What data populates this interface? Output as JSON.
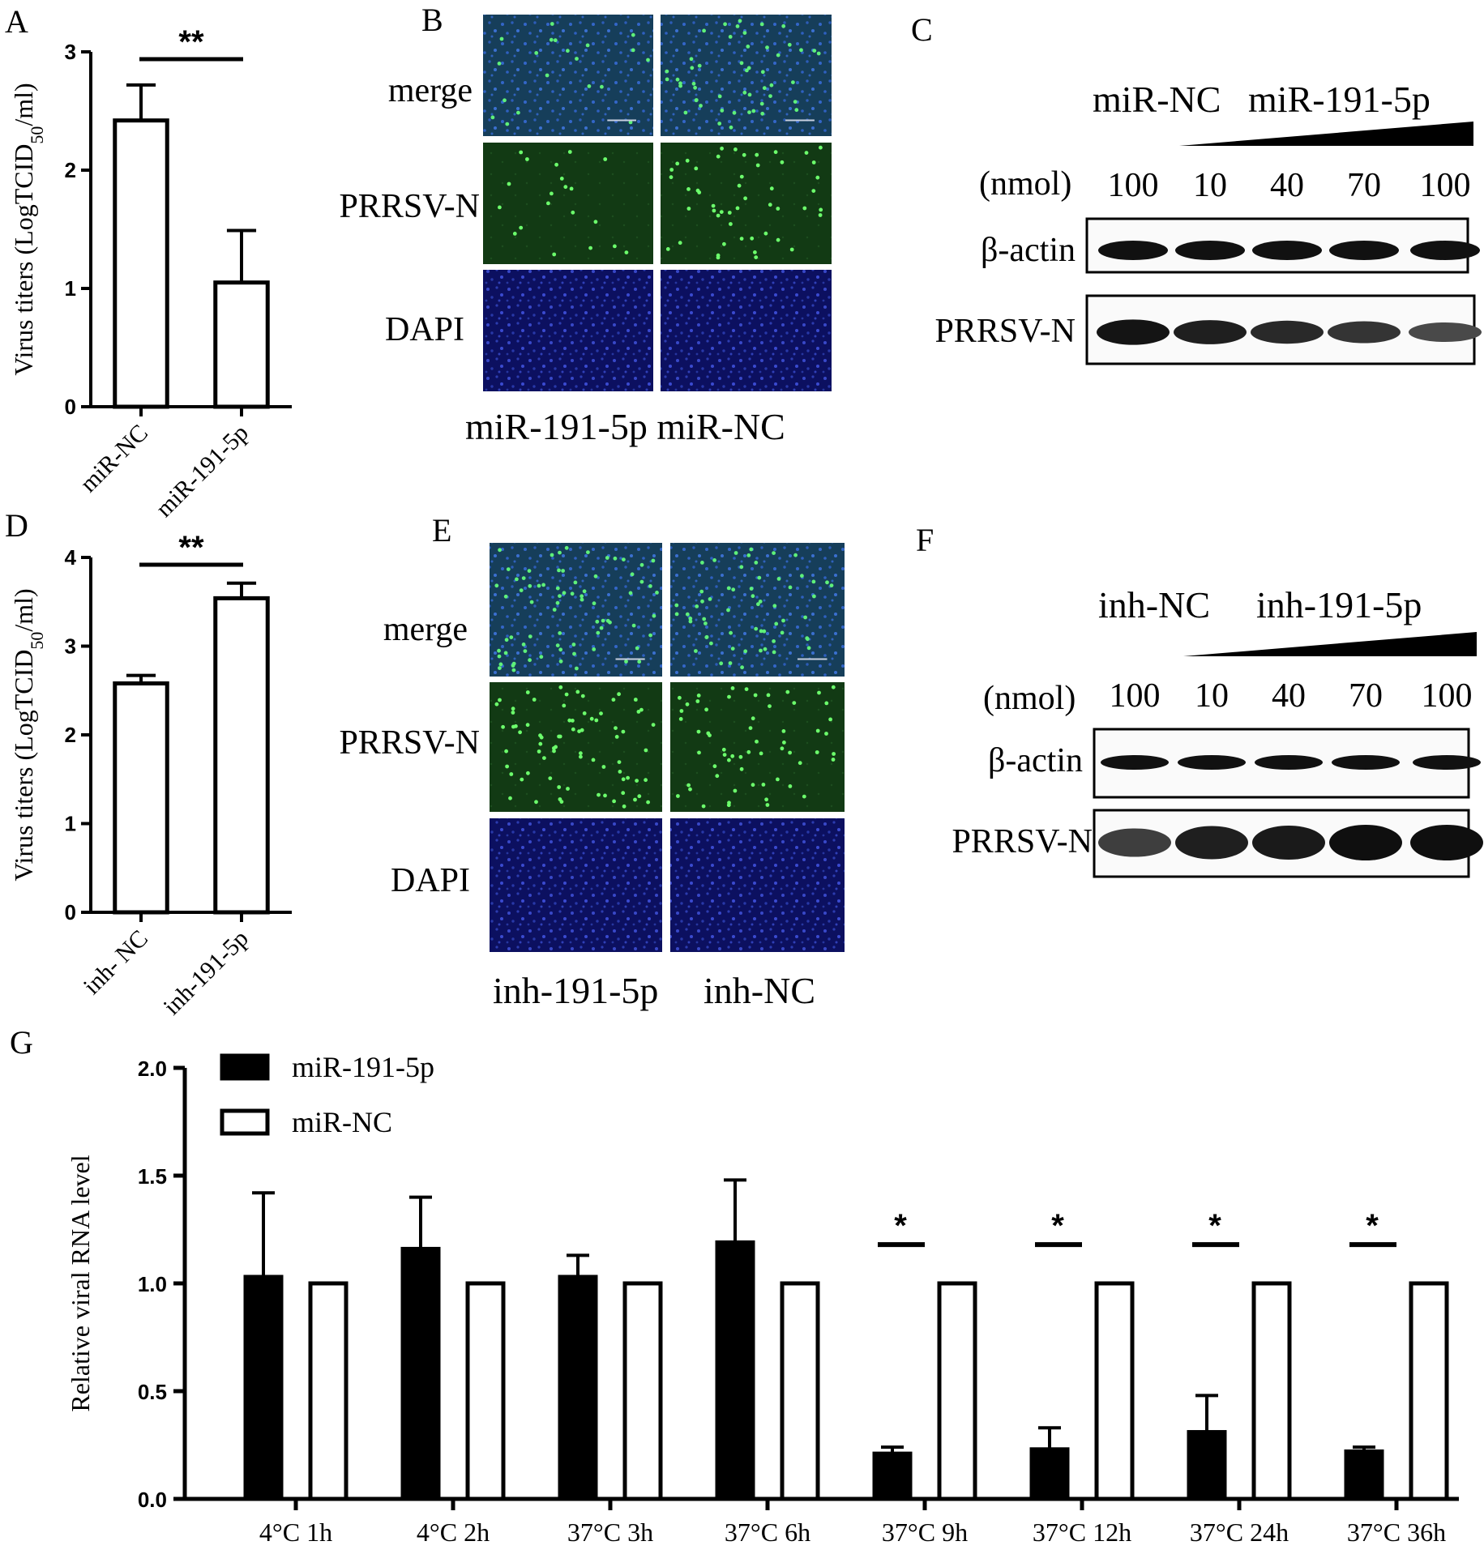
{
  "panels": {
    "A": {
      "letter": "A",
      "chart_data": {
        "type": "bar",
        "categories": [
          "miR-NC",
          "miR-191-5p"
        ],
        "values": [
          2.42,
          1.05
        ],
        "errors": [
          0.3,
          0.44
        ],
        "ylabel_prefix": "Virus titers (LogTCID",
        "ylabel_sub": "50",
        "ylabel_suffix": "/ml)",
        "ylim": [
          0,
          3
        ],
        "yticks": [
          "0",
          "1",
          "2",
          "3"
        ],
        "significance": "**"
      }
    },
    "B": {
      "letter": "B",
      "rows": [
        "merge",
        "PRRSV-N",
        "DAPI"
      ],
      "columns": [
        "miR-191-5p",
        "miR-NC"
      ],
      "column_caption": "miR-191-5p miR-NC"
    },
    "C": {
      "letter": "C",
      "group_left": "miR-NC",
      "group_right": "miR-191-5p",
      "unit": "(nmol)",
      "lanes": [
        "100",
        "10",
        "40",
        "70",
        "100"
      ],
      "blots": [
        "β-actin",
        "PRRSV-N"
      ],
      "band_intensity": {
        "beta_actin": [
          1,
          1,
          1,
          1,
          1
        ],
        "prrsv_n": [
          0.95,
          0.85,
          0.75,
          0.65,
          0.45
        ]
      }
    },
    "D": {
      "letter": "D",
      "chart_data": {
        "type": "bar",
        "categories": [
          "inh- NC",
          "inh-191-5p"
        ],
        "values": [
          2.58,
          3.54
        ],
        "errors": [
          0.09,
          0.17
        ],
        "ylabel_prefix": "Virus titers (LogTCID",
        "ylabel_sub": "50",
        "ylabel_suffix": "/ml)",
        "ylim": [
          0,
          4
        ],
        "yticks": [
          "0",
          "1",
          "2",
          "3",
          "4"
        ],
        "significance": "**"
      }
    },
    "E": {
      "letter": "E",
      "rows": [
        "merge",
        "PRRSV-N",
        "DAPI"
      ],
      "columns": [
        "inh-191-5p",
        "inh-NC"
      ]
    },
    "F": {
      "letter": "F",
      "group_left": "inh-NC",
      "group_right": "inh-191-5p",
      "unit": "(nmol)",
      "lanes": [
        "100",
        "10",
        "40",
        "70",
        "100"
      ],
      "blots": [
        "β-actin",
        "PRRSV-N"
      ],
      "band_intensity": {
        "beta_actin": [
          1,
          1,
          1,
          1,
          1
        ],
        "prrsv_n": [
          0.55,
          0.85,
          0.9,
          1.0,
          1.0
        ]
      }
    },
    "G": {
      "letter": "G",
      "chart_data": {
        "type": "bar",
        "categories": [
          "4°C 1h",
          "4°C 2h",
          "37°C 3h",
          "37°C 6h",
          "37°C 9h",
          "37°C 12h",
          "37°C 24h",
          "37°C 36h"
        ],
        "series": [
          {
            "name": "miR-191-5p",
            "values": [
              1.03,
              1.16,
              1.03,
              1.19,
              0.21,
              0.23,
              0.31,
              0.22
            ],
            "errors": [
              0.39,
              0.24,
              0.1,
              0.29,
              0.03,
              0.1,
              0.17,
              0.02
            ],
            "color": "#000000"
          },
          {
            "name": "miR-NC",
            "values": [
              1.0,
              1.0,
              1.0,
              1.0,
              1.0,
              1.0,
              1.0,
              1.0
            ],
            "errors": [
              0,
              0,
              0,
              0,
              0,
              0,
              0,
              0
            ],
            "color": "#ffffff"
          }
        ],
        "ylabel": "Relative viral RNA level",
        "ylim": [
          0,
          2.0
        ],
        "yticks": [
          "0.0",
          "0.5",
          "1.0",
          "1.5",
          "2.0"
        ],
        "significance": [
          "",
          "",
          "",
          "",
          "*",
          "*",
          "*",
          "*"
        ],
        "legend_placement": "top-left"
      }
    }
  }
}
